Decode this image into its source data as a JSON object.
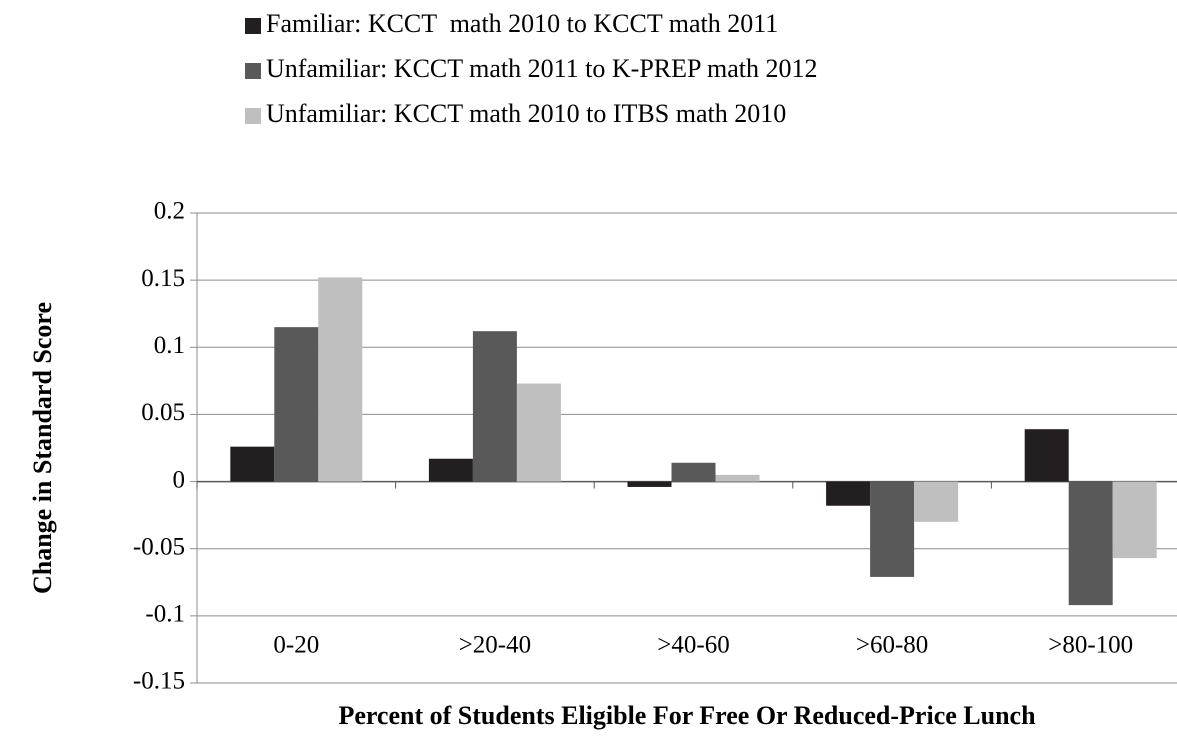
{
  "chart_data": {
    "type": "bar",
    "xlabel": "Percent of Students Eligible For Free Or Reduced-Price Lunch",
    "ylabel": "Change in Standard Score",
    "categories": [
      "0-20",
      ">20-40",
      ">40-60",
      ">60-80",
      ">80-100"
    ],
    "series": [
      {
        "name": "Familiar: KCCT  math 2010 to KCCT math 2011",
        "color": "#231f20",
        "values": [
          0.026,
          0.017,
          -0.004,
          -0.018,
          0.039
        ]
      },
      {
        "name": "Unfamiliar: KCCT math 2011 to K-PREP math 2012",
        "color": "#595959",
        "values": [
          0.115,
          0.112,
          0.014,
          -0.071,
          -0.092
        ]
      },
      {
        "name": "Unfamiliar: KCCT math 2010 to ITBS math 2010",
        "color": "#bfbfbf",
        "values": [
          0.152,
          0.073,
          0.005,
          -0.03,
          -0.057
        ]
      }
    ],
    "ylim": [
      -0.15,
      0.2
    ],
    "yticks": [
      -0.15,
      -0.1,
      -0.05,
      0,
      0.05,
      0.1,
      0.15,
      0.2
    ],
    "grid": true,
    "legend": "top"
  }
}
